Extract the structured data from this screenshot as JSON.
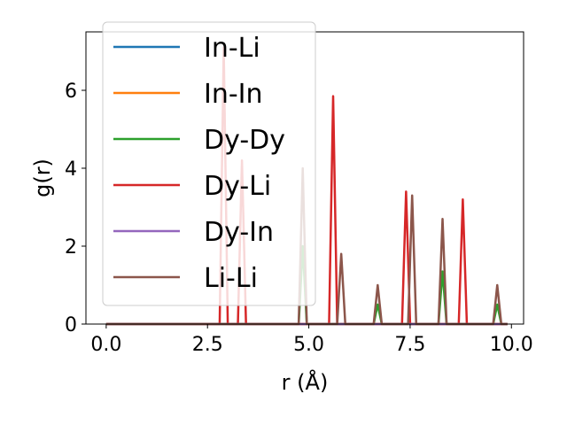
{
  "chart_data": {
    "type": "line",
    "xlabel": "r (Å)",
    "ylabel": "g(r)",
    "xlim": [
      -0.5,
      10.3
    ],
    "ylim": [
      0,
      7.5
    ],
    "x_ticks": [
      0.0,
      2.5,
      5.0,
      7.5,
      10.0
    ],
    "x_tick_labels": [
      "0.0",
      "2.5",
      "5.0",
      "7.5",
      "10.0"
    ],
    "y_ticks": [
      0,
      2,
      4,
      6
    ],
    "y_tick_labels": [
      "0",
      "2",
      "4",
      "6"
    ],
    "grid": false,
    "legend_position": "top-left",
    "series": [
      {
        "name": "In-Li",
        "color": "#1f77b4",
        "peaks": []
      },
      {
        "name": "In-In",
        "color": "#ff7f0e",
        "peaks": []
      },
      {
        "name": "Dy-Dy",
        "color": "#2ca02c",
        "peaks": [
          [
            4.85,
            2.0
          ],
          [
            6.7,
            0.5
          ],
          [
            8.3,
            1.35
          ],
          [
            9.65,
            0.5
          ]
        ]
      },
      {
        "name": "Dy-Li",
        "color": "#d62728",
        "peaks": [
          [
            2.9,
            7.1
          ],
          [
            3.35,
            4.2
          ],
          [
            5.6,
            5.85
          ],
          [
            7.4,
            3.4
          ],
          [
            8.8,
            3.2
          ]
        ]
      },
      {
        "name": "Dy-In",
        "color": "#9467bd",
        "peaks": []
      },
      {
        "name": "Li-Li",
        "color": "#8c564b",
        "peaks": [
          [
            4.85,
            4.0
          ],
          [
            5.8,
            1.8
          ],
          [
            6.7,
            1.0
          ],
          [
            7.55,
            3.3
          ],
          [
            8.3,
            2.7
          ],
          [
            9.65,
            1.0
          ]
        ]
      }
    ]
  }
}
